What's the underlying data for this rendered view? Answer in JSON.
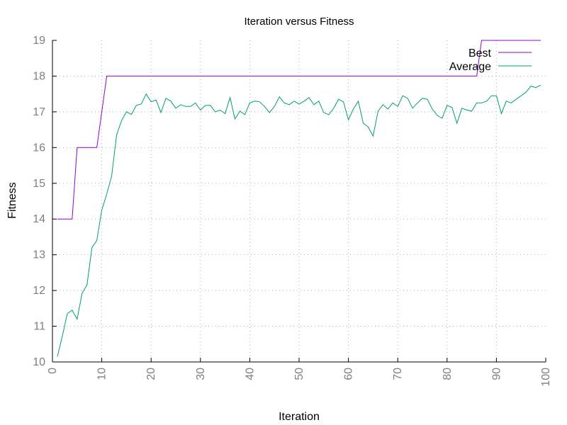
{
  "chart_data": {
    "type": "line",
    "title": "Iteration versus Fitness",
    "xlabel": "Iteration",
    "ylabel": "Fitness",
    "xlim": [
      0,
      100
    ],
    "ylim": [
      10,
      19
    ],
    "xticks": [
      "0",
      "10",
      "20",
      "30",
      "40",
      "50",
      "60",
      "70",
      "80",
      "90",
      "100"
    ],
    "yticks": [
      "10",
      "11",
      "12",
      "13",
      "14",
      "15",
      "16",
      "17",
      "18",
      "19"
    ],
    "grid": true,
    "legend_position": "top-right",
    "series": [
      {
        "name": "Best",
        "color": "#9400d3",
        "style": "step",
        "x": [
          1,
          4,
          5,
          9,
          11,
          86,
          87,
          99
        ],
        "y": [
          14,
          14,
          16,
          16,
          18,
          18,
          19,
          19
        ]
      },
      {
        "name": "Average",
        "color": "#009e73",
        "style": "line",
        "x": [
          1,
          2,
          3,
          4,
          5,
          6,
          7,
          8,
          9,
          10,
          11,
          12,
          13,
          14,
          15,
          16,
          17,
          18,
          19,
          20,
          21,
          22,
          23,
          24,
          25,
          26,
          27,
          28,
          29,
          30,
          31,
          32,
          33,
          34,
          35,
          36,
          37,
          38,
          39,
          40,
          41,
          42,
          43,
          44,
          45,
          46,
          47,
          48,
          49,
          50,
          51,
          52,
          53,
          54,
          55,
          56,
          57,
          58,
          59,
          60,
          61,
          62,
          63,
          64,
          65,
          66,
          67,
          68,
          69,
          70,
          71,
          72,
          73,
          74,
          75,
          76,
          77,
          78,
          79,
          80,
          81,
          82,
          83,
          84,
          85,
          86,
          87,
          88,
          89,
          90,
          91,
          92,
          93,
          94,
          95,
          96,
          97,
          98,
          99
        ],
        "y": [
          10.15,
          10.72,
          11.35,
          11.45,
          11.2,
          11.92,
          12.15,
          13.2,
          13.4,
          14.25,
          14.7,
          15.2,
          16.35,
          16.75,
          17.0,
          16.93,
          17.18,
          17.22,
          17.5,
          17.28,
          17.33,
          16.98,
          17.38,
          17.3,
          17.1,
          17.2,
          17.15,
          17.15,
          17.25,
          17.05,
          17.18,
          17.18,
          17.0,
          17.05,
          16.95,
          17.4,
          16.8,
          17.02,
          16.92,
          17.25,
          17.3,
          17.28,
          17.15,
          16.98,
          17.15,
          17.42,
          17.25,
          17.2,
          17.3,
          17.22,
          17.3,
          17.4,
          17.2,
          17.3,
          16.98,
          16.92,
          17.1,
          17.35,
          17.28,
          16.78,
          17.08,
          17.3,
          16.68,
          16.58,
          16.32,
          17.02,
          17.2,
          17.08,
          17.25,
          17.15,
          17.45,
          17.38,
          17.1,
          17.25,
          17.38,
          17.35,
          17.08,
          16.9,
          16.82,
          17.18,
          17.12,
          16.68,
          17.1,
          17.05,
          17.02,
          17.25,
          17.25,
          17.3,
          17.45,
          17.45,
          16.95,
          17.3,
          17.25,
          17.35,
          17.45,
          17.55,
          17.72,
          17.68,
          17.75
        ]
      }
    ]
  }
}
